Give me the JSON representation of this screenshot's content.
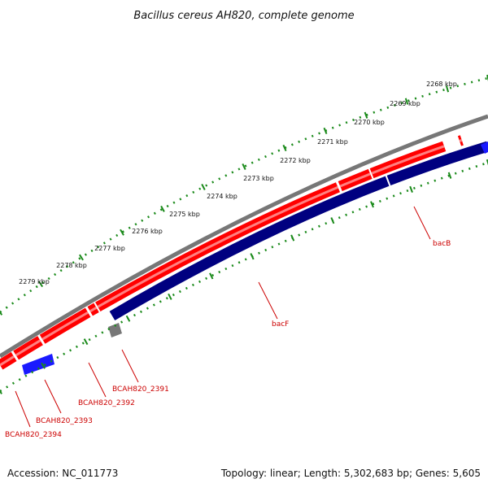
{
  "title": "Bacillus cereus AH820, complete genome",
  "footer": {
    "accession": "Accession: NC_011773",
    "summary": "Topology: linear; Length: 5,302,683 bp; Genes: 5,605"
  },
  "colors": {
    "forward_gene": "#ff0000",
    "reverse_gene": "#0000ff",
    "reverse_gene_dark": "#000080",
    "backbone": "#777777",
    "grey_block": "#777777",
    "ticks": "#1a8a1a",
    "gene_label": "#cc0000"
  },
  "ruler": {
    "unit": "kbp",
    "labels": [
      "2268 kbp",
      "2269 kbp",
      "2270 kbp",
      "2271 kbp",
      "2272 kbp",
      "2273 kbp",
      "2274 kbp",
      "2275 kbp",
      "2276 kbp",
      "2277 kbp",
      "2278 kbp",
      "2279 kbp"
    ]
  },
  "gene_labels": [
    "bacB",
    "bacF",
    "BCAH820_2391",
    "BCAH820_2392",
    "BCAH820_2393",
    "BCAH820_2394"
  ]
}
